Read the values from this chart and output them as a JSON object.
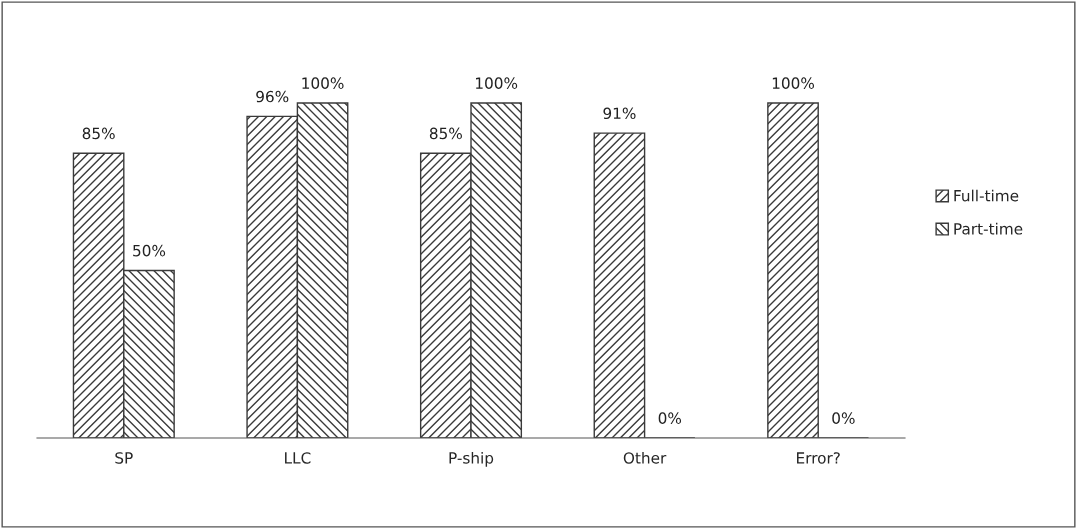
{
  "chart_data": {
    "type": "bar",
    "categories": [
      "SP",
      "LLC",
      "P-ship",
      "Other",
      "Error?"
    ],
    "series": [
      {
        "name": "Full-time",
        "color": "#3a3a3a",
        "values": [
          85,
          96,
          85,
          91,
          100
        ],
        "value_labels": [
          "85%",
          "96%",
          "85%",
          "91%",
          "100%"
        ]
      },
      {
        "name": "Part-time",
        "color": "#3a3a3a",
        "values": [
          50,
          100,
          100,
          0,
          0
        ],
        "value_labels": [
          "50%",
          "100%",
          "100%",
          "0%",
          "0%"
        ]
      }
    ],
    "tick_labels": "x",
    "grid": false,
    "legend": "right"
  }
}
